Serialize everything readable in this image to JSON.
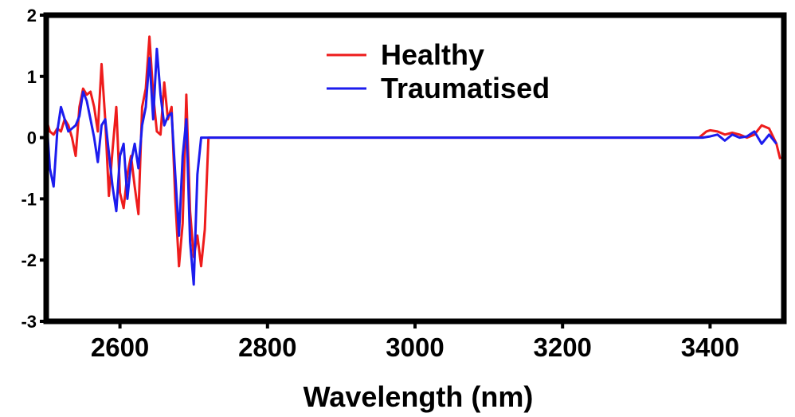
{
  "chart_data": {
    "type": "line",
    "xlabel": "Wavelength (nm)",
    "ylabel": "",
    "xlim": [
      2500,
      3500
    ],
    "ylim": [
      -3,
      2
    ],
    "xticks": [
      2600,
      2800,
      3000,
      3200,
      3400
    ],
    "yticks": [
      -3,
      -2,
      -1,
      0,
      1,
      2
    ],
    "grid": false,
    "legend_position": "top-center",
    "series": [
      {
        "name": "Healthy",
        "color": "#ee1c1c",
        "points": [
          [
            2500,
            0.3
          ],
          [
            2505,
            0.1
          ],
          [
            2510,
            0.05
          ],
          [
            2515,
            0.15
          ],
          [
            2520,
            0.1
          ],
          [
            2525,
            0.3
          ],
          [
            2530,
            0.2
          ],
          [
            2535,
            0.0
          ],
          [
            2540,
            -0.3
          ],
          [
            2545,
            0.5
          ],
          [
            2550,
            0.8
          ],
          [
            2555,
            0.7
          ],
          [
            2560,
            0.75
          ],
          [
            2565,
            0.5
          ],
          [
            2570,
            0.1
          ],
          [
            2575,
            1.2
          ],
          [
            2580,
            0.3
          ],
          [
            2585,
            -0.95
          ],
          [
            2590,
            -0.2
          ],
          [
            2595,
            0.5
          ],
          [
            2600,
            -0.9
          ],
          [
            2605,
            -1.15
          ],
          [
            2610,
            -0.6
          ],
          [
            2615,
            -0.3
          ],
          [
            2620,
            -0.8
          ],
          [
            2625,
            -1.25
          ],
          [
            2630,
            0.5
          ],
          [
            2635,
            0.8
          ],
          [
            2640,
            1.65
          ],
          [
            2645,
            0.7
          ],
          [
            2650,
            0.1
          ],
          [
            2655,
            0.05
          ],
          [
            2660,
            0.9
          ],
          [
            2665,
            0.3
          ],
          [
            2670,
            0.5
          ],
          [
            2675,
            -1.0
          ],
          [
            2680,
            -2.1
          ],
          [
            2685,
            -1.4
          ],
          [
            2690,
            0.7
          ],
          [
            2695,
            -1.2
          ],
          [
            2700,
            -1.95
          ],
          [
            2705,
            -1.6
          ],
          [
            2710,
            -2.1
          ],
          [
            2715,
            -1.5
          ],
          [
            2720,
            0.0
          ],
          [
            3385,
            0.0
          ],
          [
            3390,
            0.05
          ],
          [
            3395,
            0.1
          ],
          [
            3400,
            0.12
          ],
          [
            3410,
            0.1
          ],
          [
            3420,
            0.05
          ],
          [
            3430,
            0.08
          ],
          [
            3440,
            0.05
          ],
          [
            3450,
            0.0
          ],
          [
            3460,
            0.05
          ],
          [
            3470,
            0.2
          ],
          [
            3480,
            0.15
          ],
          [
            3490,
            -0.1
          ],
          [
            3495,
            -0.35
          ]
        ]
      },
      {
        "name": "Traumatised",
        "color": "#1c1cee",
        "points": [
          [
            2500,
            0.4
          ],
          [
            2505,
            -0.5
          ],
          [
            2510,
            -0.8
          ],
          [
            2515,
            0.1
          ],
          [
            2520,
            0.5
          ],
          [
            2525,
            0.3
          ],
          [
            2530,
            0.1
          ],
          [
            2535,
            0.15
          ],
          [
            2540,
            0.2
          ],
          [
            2545,
            0.35
          ],
          [
            2550,
            0.75
          ],
          [
            2555,
            0.6
          ],
          [
            2560,
            0.3
          ],
          [
            2565,
            0.0
          ],
          [
            2570,
            -0.4
          ],
          [
            2575,
            0.2
          ],
          [
            2580,
            0.3
          ],
          [
            2585,
            -0.25
          ],
          [
            2590,
            -0.8
          ],
          [
            2595,
            -1.2
          ],
          [
            2600,
            -0.3
          ],
          [
            2605,
            -0.1
          ],
          [
            2610,
            -1.0
          ],
          [
            2615,
            -0.4
          ],
          [
            2620,
            -0.1
          ],
          [
            2625,
            -0.5
          ],
          [
            2630,
            0.2
          ],
          [
            2635,
            0.5
          ],
          [
            2640,
            1.3
          ],
          [
            2645,
            0.3
          ],
          [
            2650,
            1.45
          ],
          [
            2655,
            0.7
          ],
          [
            2660,
            0.2
          ],
          [
            2665,
            0.35
          ],
          [
            2670,
            0.4
          ],
          [
            2675,
            -0.6
          ],
          [
            2680,
            -1.6
          ],
          [
            2685,
            -0.3
          ],
          [
            2690,
            0.3
          ],
          [
            2695,
            -1.7
          ],
          [
            2700,
            -2.4
          ],
          [
            2705,
            -0.6
          ],
          [
            2710,
            0.0
          ],
          [
            3390,
            0.0
          ],
          [
            3400,
            0.02
          ],
          [
            3410,
            0.05
          ],
          [
            3420,
            -0.05
          ],
          [
            3430,
            0.05
          ],
          [
            3440,
            0.0
          ],
          [
            3450,
            0.02
          ],
          [
            3460,
            0.1
          ],
          [
            3470,
            -0.1
          ],
          [
            3480,
            0.05
          ],
          [
            3490,
            -0.1
          ]
        ]
      }
    ]
  }
}
